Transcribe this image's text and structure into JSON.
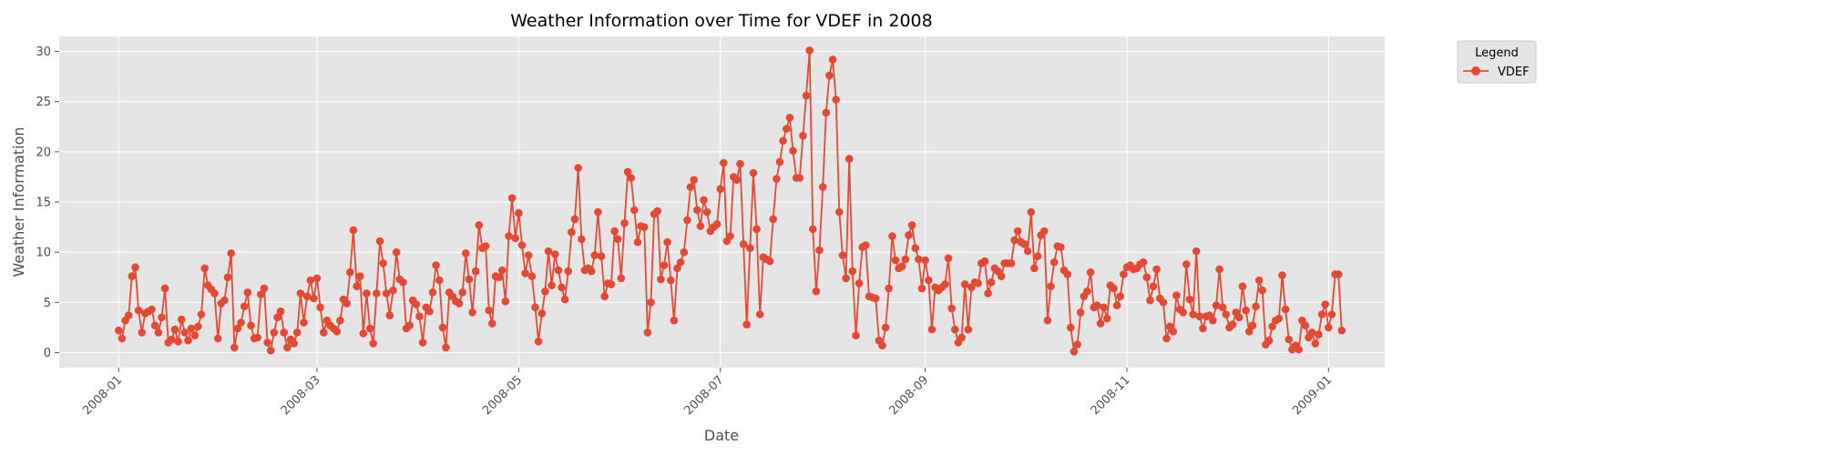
{
  "chart_data": {
    "type": "line",
    "title": "Weather Information over Time for VDEF in 2008",
    "xlabel": "Date",
    "ylabel": "Weather Information",
    "x_start": "2008-01-01",
    "x_step_days": 1,
    "xlim": [
      "2007-12-14",
      "2009-01-18"
    ],
    "ylim": [
      -1.5,
      31.5
    ],
    "x_ticks": [
      "2008-01",
      "2008-03",
      "2008-05",
      "2008-07",
      "2008-09",
      "2008-11",
      "2009-01"
    ],
    "x_tick_dates": [
      "2008-01-01",
      "2008-03-01",
      "2008-05-01",
      "2008-07-01",
      "2008-09-01",
      "2008-11-01",
      "2009-01-01"
    ],
    "y_ticks": [
      0,
      5,
      10,
      15,
      20,
      25,
      30
    ],
    "grid": true,
    "legend": {
      "title": "Legend",
      "placement": "outside-top-right"
    },
    "series": [
      {
        "name": "VDEF",
        "color": "#E24A33",
        "values": [
          2.2,
          1.4,
          3.2,
          3.7,
          7.6,
          8.5,
          4.2,
          2.0,
          3.9,
          4.1,
          4.3,
          2.7,
          2.0,
          3.5,
          6.4,
          1.0,
          1.3,
          2.3,
          1.1,
          3.3,
          2.0,
          1.2,
          2.4,
          1.7,
          2.6,
          3.8,
          8.4,
          6.7,
          6.3,
          5.9,
          1.4,
          4.9,
          5.2,
          7.5,
          9.9,
          0.5,
          2.4,
          3.0,
          4.6,
          6.0,
          2.7,
          1.4,
          1.5,
          5.8,
          6.4,
          1.0,
          0.2,
          2.0,
          3.5,
          4.1,
          2.0,
          0.5,
          1.3,
          0.9,
          2.0,
          5.9,
          3.0,
          5.6,
          7.2,
          5.4,
          7.4,
          4.5,
          2.0,
          3.2,
          2.7,
          2.4,
          2.1,
          3.2,
          5.3,
          4.9,
          8.0,
          12.2,
          6.6,
          7.6,
          1.9,
          5.9,
          2.4,
          0.9,
          5.9,
          11.1,
          8.9,
          5.9,
          3.7,
          6.2,
          10.0,
          7.3,
          7.0,
          2.4,
          2.7,
          5.2,
          4.8,
          3.6,
          1.0,
          4.5,
          4.1,
          6.0,
          8.7,
          7.2,
          2.5,
          0.5,
          6.0,
          5.6,
          5.1,
          4.9,
          6.0,
          9.9,
          7.3,
          4.0,
          8.1,
          12.7,
          10.4,
          10.6,
          4.2,
          2.9,
          7.6,
          7.5,
          8.2,
          5.1,
          11.6,
          15.4,
          11.4,
          13.9,
          10.7,
          7.9,
          9.7,
          7.6,
          4.5,
          1.1,
          3.9,
          6.1,
          10.1,
          6.7,
          9.8,
          8.2,
          6.5,
          5.3,
          8.1,
          12.0,
          13.3,
          18.4,
          11.3,
          8.2,
          8.4,
          8.1,
          9.7,
          14.0,
          9.6,
          5.6,
          6.9,
          6.8,
          12.1,
          11.3,
          7.4,
          12.9,
          18.0,
          17.4,
          14.2,
          11.0,
          12.6,
          12.5,
          2.0,
          5.0,
          13.8,
          14.1,
          7.3,
          8.7,
          11.0,
          7.2,
          3.2,
          8.4,
          9.0,
          10.0,
          13.2,
          16.5,
          17.2,
          14.2,
          12.6,
          15.2,
          14.0,
          12.1,
          12.5,
          12.8,
          16.3,
          18.9,
          11.1,
          11.6,
          17.5,
          17.2,
          18.8,
          10.8,
          2.8,
          10.4,
          17.9,
          12.3,
          3.8,
          9.5,
          9.3,
          9.1,
          13.3,
          17.3,
          19.0,
          21.1,
          22.3,
          23.4,
          20.1,
          17.4,
          17.4,
          21.6,
          25.6,
          30.1,
          12.3,
          6.1,
          10.2,
          16.5,
          23.9,
          27.6,
          29.2,
          25.2,
          14.0,
          9.7,
          7.4,
          19.3,
          8.1,
          1.7,
          6.9,
          10.5,
          10.7,
          5.6,
          5.5,
          5.4,
          1.2,
          0.7,
          2.5,
          6.4,
          11.6,
          9.2,
          8.4,
          8.6,
          9.3,
          11.7,
          12.7,
          10.4,
          9.3,
          6.4,
          9.2,
          7.2,
          2.3,
          6.5,
          6.2,
          6.5,
          6.8,
          9.4,
          4.4,
          2.3,
          1.0,
          1.5,
          6.8,
          2.3,
          6.5,
          7.0,
          6.9,
          8.9,
          9.1,
          5.9,
          7.0,
          8.4,
          8.1,
          7.6,
          8.9,
          8.9,
          8.9,
          11.2,
          12.1,
          11.0,
          10.8,
          10.1,
          14.0,
          8.4,
          9.6,
          11.7,
          12.1,
          3.2,
          6.6,
          9.0,
          10.6,
          10.5,
          8.2,
          7.8,
          2.5,
          0.1,
          0.8,
          4.0,
          5.6,
          6.1,
          8.0,
          4.5,
          4.7,
          2.9,
          4.5,
          3.4,
          6.7,
          6.4,
          4.7,
          5.6,
          7.8,
          8.5,
          8.7,
          8.3,
          8.4,
          8.8,
          9.0,
          7.5,
          5.2,
          6.6,
          8.3,
          5.4,
          5.0,
          1.4,
          2.6,
          2.1,
          5.7,
          4.3,
          4.0,
          8.8,
          5.3,
          3.8,
          10.1,
          3.6,
          2.4,
          3.6,
          3.7,
          3.2,
          4.7,
          8.3,
          4.5,
          3.8,
          2.5,
          2.8,
          4.0,
          3.5,
          6.6,
          4.2,
          2.1,
          2.7,
          4.6,
          7.2,
          6.2,
          0.8,
          1.2,
          2.6,
          3.2,
          3.4,
          7.7,
          4.3,
          1.3,
          0.3,
          0.7,
          0.3,
          3.2,
          2.7,
          1.5,
          2.0,
          0.9,
          1.8,
          3.8,
          4.8,
          2.5,
          3.8,
          7.8,
          7.8,
          2.2
        ]
      }
    ]
  }
}
